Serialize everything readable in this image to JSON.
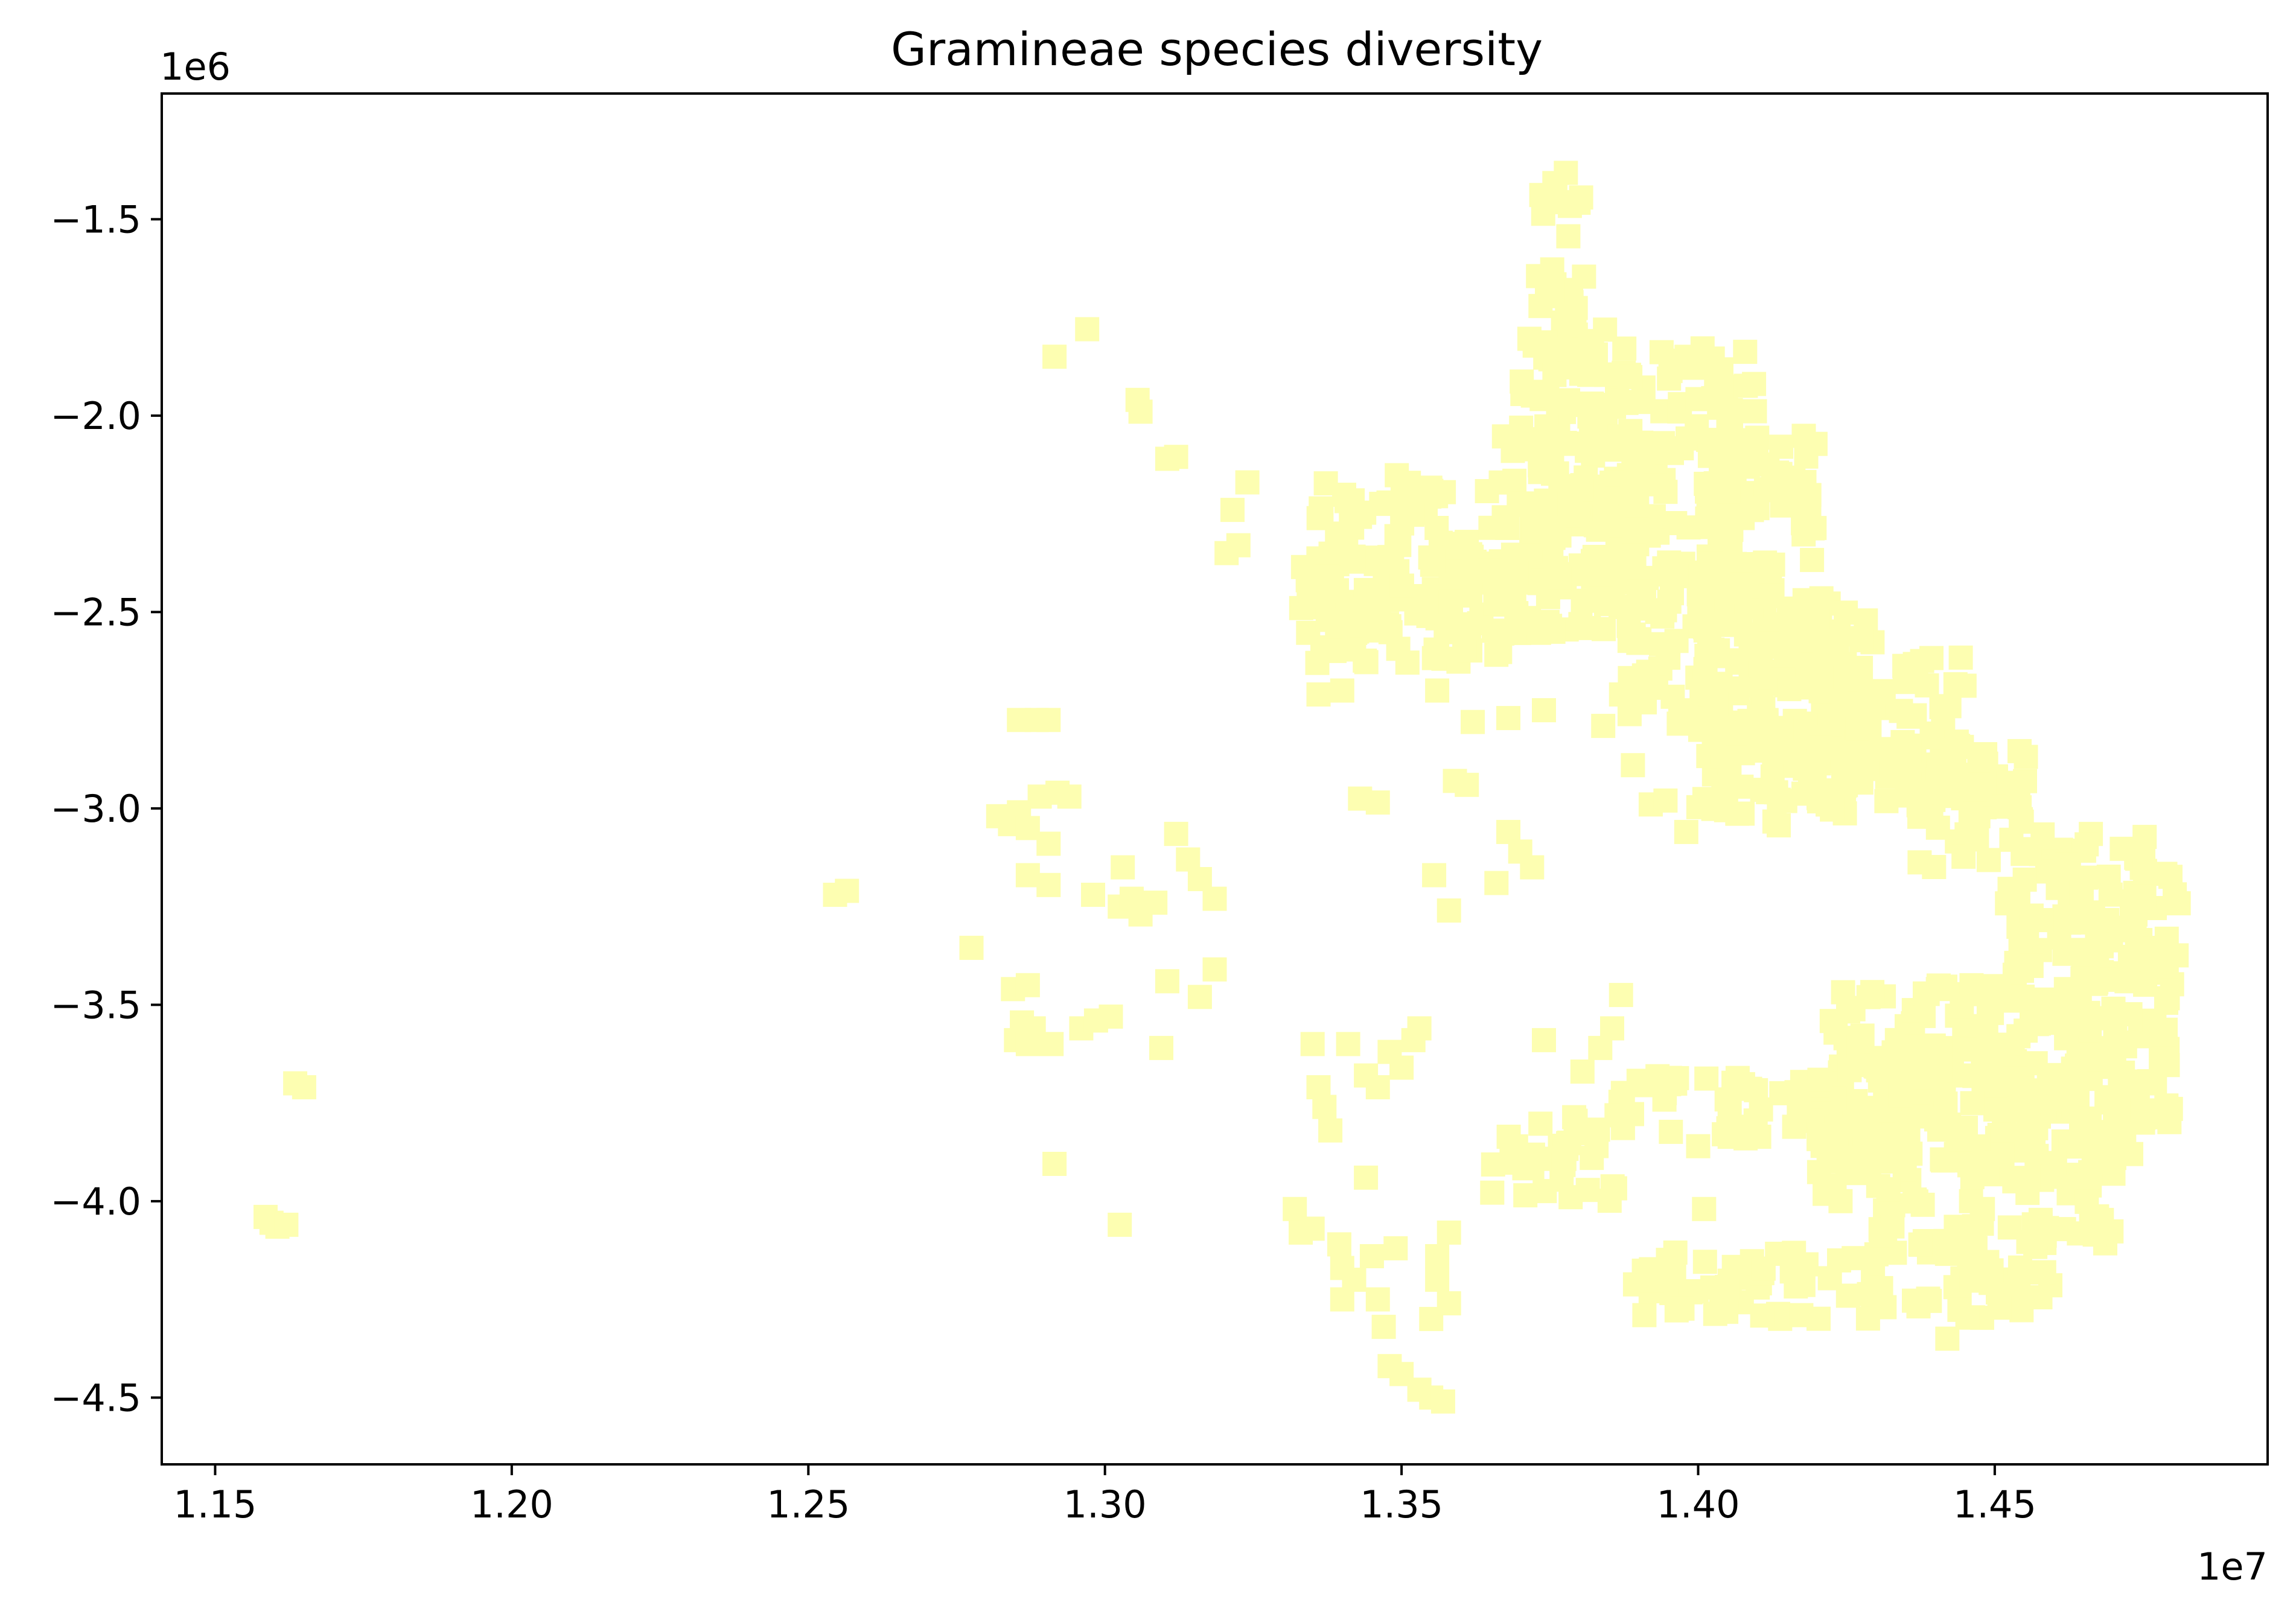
{
  "chart_data": {
    "type": "scatter",
    "title": "Gramineae species diversity",
    "xlabel": "",
    "ylabel": "",
    "x_offset_label": "1e7",
    "y_offset_label": "1e6",
    "x_ticks": [
      {
        "value": 11500000,
        "label": "1.15"
      },
      {
        "value": 12000000,
        "label": "1.20"
      },
      {
        "value": 12500000,
        "label": "1.25"
      },
      {
        "value": 13000000,
        "label": "1.30"
      },
      {
        "value": 13500000,
        "label": "1.35"
      },
      {
        "value": 14000000,
        "label": "1.40"
      },
      {
        "value": 14500000,
        "label": "1.45"
      }
    ],
    "y_ticks": [
      {
        "value": -1500000,
        "label": "−1.5"
      },
      {
        "value": -2000000,
        "label": "−2.0"
      },
      {
        "value": -2500000,
        "label": "−2.5"
      },
      {
        "value": -3000000,
        "label": "−3.0"
      },
      {
        "value": -3500000,
        "label": "−3.5"
      },
      {
        "value": -4000000,
        "label": "−4.0"
      },
      {
        "value": -4500000,
        "label": "−4.5"
      }
    ],
    "xlim": [
      11410000,
      14960000
    ],
    "ylim": [
      -4670000,
      -1180000
    ],
    "grid": false,
    "marker": "square",
    "color": "#fdfeb1",
    "series": [
      {
        "points": [
          [
            11585000,
            -4040000
          ],
          [
            11595000,
            -4055000
          ],
          [
            11605000,
            -4065000
          ],
          [
            11620000,
            -4060000
          ],
          [
            11635000,
            -3700000
          ],
          [
            11650000,
            -3710000
          ],
          [
            12545000,
            -3220000
          ],
          [
            12565000,
            -3210000
          ],
          [
            12775000,
            -3355000
          ],
          [
            12820000,
            -3020000
          ],
          [
            12840000,
            -3040000
          ],
          [
            12855000,
            -3010000
          ],
          [
            12870000,
            -3050000
          ],
          [
            12890000,
            -2970000
          ],
          [
            12905000,
            -3090000
          ],
          [
            12920000,
            -2960000
          ],
          [
            12940000,
            -2970000
          ],
          [
            12855000,
            -2775000
          ],
          [
            12885000,
            -2775000
          ],
          [
            12905000,
            -2775000
          ],
          [
            12870000,
            -3170000
          ],
          [
            12905000,
            -3195000
          ],
          [
            12845000,
            -3460000
          ],
          [
            12870000,
            -3450000
          ],
          [
            12860000,
            -3545000
          ],
          [
            12880000,
            -3560000
          ],
          [
            12850000,
            -3590000
          ],
          [
            12870000,
            -3600000
          ],
          [
            12910000,
            -3600000
          ],
          [
            12960000,
            -3560000
          ],
          [
            12985000,
            -3540000
          ],
          [
            13010000,
            -3530000
          ],
          [
            12915000,
            -3905000
          ],
          [
            13025000,
            -4060000
          ],
          [
            12915000,
            -1850000
          ],
          [
            12970000,
            -1780000
          ],
          [
            13055000,
            -1960000
          ],
          [
            13060000,
            -1990000
          ],
          [
            13105000,
            -2110000
          ],
          [
            13120000,
            -2105000
          ],
          [
            13215000,
            -2240000
          ],
          [
            13205000,
            -2350000
          ],
          [
            13225000,
            -2330000
          ],
          [
            13240000,
            -2170000
          ],
          [
            12980000,
            -3220000
          ],
          [
            13025000,
            -3250000
          ],
          [
            13045000,
            -3230000
          ],
          [
            13060000,
            -3270000
          ],
          [
            13085000,
            -3240000
          ],
          [
            13030000,
            -3150000
          ],
          [
            13120000,
            -3065000
          ],
          [
            13140000,
            -3130000
          ],
          [
            13160000,
            -3180000
          ],
          [
            13185000,
            -3230000
          ],
          [
            13105000,
            -3440000
          ],
          [
            13160000,
            -3480000
          ],
          [
            13185000,
            -3410000
          ],
          [
            13095000,
            -3610000
          ],
          [
            13320000,
            -4020000
          ],
          [
            13330000,
            -4080000
          ],
          [
            13350000,
            -4070000
          ],
          [
            13395000,
            -4110000
          ],
          [
            13400000,
            -4170000
          ],
          [
            13420000,
            -4200000
          ],
          [
            13460000,
            -4250000
          ],
          [
            13400000,
            -4250000
          ],
          [
            13450000,
            -4140000
          ],
          [
            13490000,
            -4120000
          ],
          [
            13350000,
            -3600000
          ],
          [
            13360000,
            -3710000
          ],
          [
            13370000,
            -3760000
          ],
          [
            13380000,
            -3820000
          ],
          [
            13410000,
            -3600000
          ],
          [
            13440000,
            -3680000
          ],
          [
            13460000,
            -3710000
          ],
          [
            13480000,
            -3620000
          ],
          [
            13500000,
            -3660000
          ],
          [
            13520000,
            -3590000
          ],
          [
            13530000,
            -3560000
          ],
          [
            13440000,
            -3940000
          ],
          [
            13470000,
            -4320000
          ],
          [
            13480000,
            -4420000
          ],
          [
            13500000,
            -4440000
          ],
          [
            13530000,
            -4480000
          ],
          [
            13550000,
            -4500000
          ],
          [
            13570000,
            -4510000
          ],
          [
            13550000,
            -4300000
          ],
          [
            13560000,
            -4200000
          ],
          [
            13580000,
            -4260000
          ],
          [
            13560000,
            -4140000
          ],
          [
            13580000,
            -4080000
          ],
          [
            13360000,
            -2710000
          ],
          [
            13400000,
            -2700000
          ],
          [
            13430000,
            -2975000
          ],
          [
            13460000,
            -2985000
          ],
          [
            13555000,
            -3170000
          ],
          [
            13580000,
            -3260000
          ],
          [
            13590000,
            -2930000
          ],
          [
            13610000,
            -2940000
          ],
          [
            13660000,
            -3190000
          ],
          [
            13680000,
            -3060000
          ],
          [
            13700000,
            -3110000
          ],
          [
            13720000,
            -3150000
          ],
          [
            13740000,
            -3590000
          ],
          [
            13805000,
            -3670000
          ],
          [
            13835000,
            -3610000
          ],
          [
            13870000,
            -3475000
          ],
          [
            13855000,
            -3560000
          ],
          [
            13890000,
            -2890000
          ],
          [
            13920000,
            -2990000
          ],
          [
            13945000,
            -2980000
          ],
          [
            13980000,
            -3060000
          ],
          [
            13840000,
            -2790000
          ],
          [
            13870000,
            -2710000
          ],
          [
            13910000,
            -2730000
          ],
          [
            13740000,
            -2750000
          ],
          [
            13680000,
            -2770000
          ],
          [
            13620000,
            -2780000
          ],
          [
            13560000,
            -2700000
          ],
          [
            14010000,
            -4020000
          ],
          [
            14080000,
            -3840000
          ],
          [
            14000000,
            -3860000
          ],
          [
            14220000,
            -3880000
          ],
          [
            14230000,
            -3960000
          ],
          [
            14240000,
            -4000000
          ],
          [
            14460000,
            -4000000
          ],
          [
            14480000,
            -4020000
          ],
          [
            14420000,
            -4350000
          ],
          [
            14440000,
            -3680000
          ],
          [
            14480000,
            -3650000
          ],
          [
            14500000,
            -3740000
          ],
          [
            14540000,
            -3580000
          ],
          [
            14580000,
            -3520000
          ],
          [
            14620000,
            -3460000
          ],
          [
            14660000,
            -3580000
          ],
          [
            14700000,
            -3510000
          ],
          [
            14720000,
            -3420000
          ],
          [
            14760000,
            -3580000
          ],
          [
            14780000,
            -3640000
          ],
          [
            14770000,
            -3700000
          ],
          [
            14750000,
            -3800000
          ],
          [
            14730000,
            -3880000
          ],
          [
            14700000,
            -3930000
          ],
          [
            14660000,
            -3960000
          ]
        ],
        "regions": [
          {
            "x": [
              13720000,
              13810000
            ],
            "y": [
              -1880000,
              -1380000
            ]
          },
          {
            "x": [
              13700000,
              13880000
            ],
            "y": [
              -2150000,
              -1780000
            ]
          },
          {
            "x": [
              13660000,
              13950000
            ],
            "y": [
              -2400000,
              -2050000
            ]
          },
          {
            "x": [
              13850000,
              14100000
            ],
            "y": [
              -2300000,
              -1820000
            ]
          },
          {
            "x": [
              14000000,
              14200000
            ],
            "y": [
              -2700000,
              -2050000
            ]
          },
          {
            "x": [
              14100000,
              14300000
            ],
            "y": [
              -2900000,
              -2450000
            ]
          },
          {
            "x": [
              14200000,
              14450000
            ],
            "y": [
              -3000000,
              -2600000
            ]
          },
          {
            "x": [
              14350000,
              14560000
            ],
            "y": [
              -3150000,
              -2800000
            ]
          },
          {
            "x": [
              14520000,
              14760000
            ],
            "y": [
              -3450000,
              -3050000
            ]
          },
          {
            "x": [
              14640000,
              14820000
            ],
            "y": [
              -3450000,
              -3150000
            ]
          },
          {
            "x": [
              13340000,
              13900000
            ],
            "y": [
              -2560000,
              -2150000
            ]
          },
          {
            "x": [
              13320000,
              13680000
            ],
            "y": [
              -2630000,
              -2350000
            ]
          },
          {
            "x": [
              13880000,
              14130000
            ],
            "y": [
              -2800000,
              -2350000
            ]
          },
          {
            "x": [
              14000000,
              14250000
            ],
            "y": [
              -3050000,
              -2650000
            ]
          },
          {
            "x": [
              14220000,
              14580000
            ],
            "y": [
              -3900000,
              -3450000
            ]
          },
          {
            "x": [
              14550000,
              14800000
            ],
            "y": [
              -3800000,
              -3480000
            ]
          },
          {
            "x": [
              14300000,
              14720000
            ],
            "y": [
              -3980000,
              -3600000
            ]
          },
          {
            "x": [
              14200000,
              14380000
            ],
            "y": [
              -4030000,
              -3650000
            ]
          },
          {
            "x": [
              13860000,
              14220000
            ],
            "y": [
              -3860000,
              -3680000
            ]
          },
          {
            "x": [
              13650000,
              13860000
            ],
            "y": [
              -4000000,
              -3780000
            ]
          },
          {
            "x": [
              13880000,
              14320000
            ],
            "y": [
              -4300000,
              -4130000
            ]
          },
          {
            "x": [
              14300000,
              14600000
            ],
            "y": [
              -4300000,
              -4050000
            ]
          },
          {
            "x": [
              14560000,
              14700000
            ],
            "y": [
              -4120000,
              -3900000
            ]
          }
        ]
      }
    ]
  }
}
